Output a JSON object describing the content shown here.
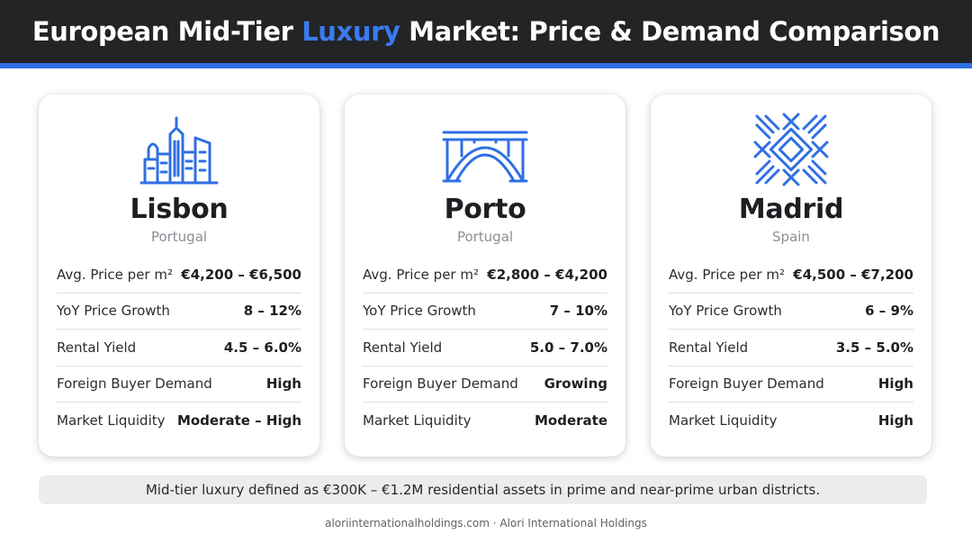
{
  "header": {
    "title_before": "European Mid-Tier ",
    "title_highlight": "Luxury",
    "title_after": " Market: Price & Demand Comparison",
    "accent_color": "#2f6fe4",
    "highlight_color": "#3b7bf0"
  },
  "cards": [
    {
      "city": "Lisbon",
      "country": "Portugal",
      "icon": "city-skyline-icon",
      "metrics": [
        {
          "label": "Avg. Price per m²",
          "value": "€4,200 – €6,500"
        },
        {
          "label": "YoY Price Growth",
          "value": "8 – 12%"
        },
        {
          "label": "Rental Yield",
          "value": "4.5 – 6.0%"
        },
        {
          "label": "Foreign Buyer Demand",
          "value": "High"
        },
        {
          "label": "Market Liquidity",
          "value": "Moderate – High"
        }
      ]
    },
    {
      "city": "Porto",
      "country": "Portugal",
      "icon": "bridge-icon",
      "metrics": [
        {
          "label": "Avg. Price per m²",
          "value": "€2,800 – €4,200"
        },
        {
          "label": "YoY Price Growth",
          "value": "7 – 10%"
        },
        {
          "label": "Rental Yield",
          "value": "5.0 – 7.0%"
        },
        {
          "label": "Foreign Buyer Demand",
          "value": "Growing"
        },
        {
          "label": "Market Liquidity",
          "value": "Moderate"
        }
      ]
    },
    {
      "city": "Madrid",
      "country": "Spain",
      "icon": "geometric-star-pattern-icon",
      "metrics": [
        {
          "label": "Avg. Price per m²",
          "value": "€4,500 – €7,200"
        },
        {
          "label": "YoY Price Growth",
          "value": "6 – 9%"
        },
        {
          "label": "Rental Yield",
          "value": "3.5 – 5.0%"
        },
        {
          "label": "Foreign Buyer Demand",
          "value": "High"
        },
        {
          "label": "Market Liquidity",
          "value": "High"
        }
      ]
    }
  ],
  "footnote": "Mid-tier luxury defined as €300K – €1.2M residential assets in prime and near-prime urban districts.",
  "source": "aloriinternationalholdings.com · Alori International Holdings"
}
